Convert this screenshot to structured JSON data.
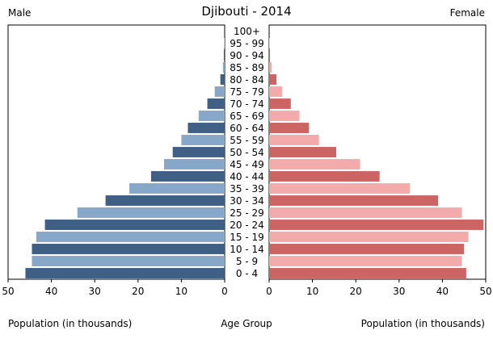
{
  "chart_data": {
    "type": "bar",
    "orientation": "horizontal",
    "title": "Djibouti - 2014",
    "left_panel_label": "Male",
    "right_panel_label": "Female",
    "xlabel_left": "Population (in thousands)",
    "xlabel_center": "Age Group",
    "xlabel_right": "Population (in thousands)",
    "xlim": [
      0,
      50
    ],
    "xticks": [
      0,
      10,
      20,
      30,
      40,
      50
    ],
    "categories": [
      "0 - 4",
      "5 - 9",
      "10 - 14",
      "15 - 19",
      "20 - 24",
      "25 - 29",
      "30 - 34",
      "35 - 39",
      "40 - 44",
      "45 - 49",
      "50 - 54",
      "55 - 59",
      "60 - 64",
      "65 - 69",
      "70 - 74",
      "75 - 79",
      "80 - 84",
      "85 - 89",
      "90 - 94",
      "95 - 99",
      "100+"
    ],
    "series": [
      {
        "name": "Male",
        "values": [
          46,
          44.5,
          44.5,
          43.5,
          41.5,
          34,
          27.5,
          22,
          17,
          14,
          12,
          10,
          8.5,
          6,
          4,
          2.3,
          1,
          0.4,
          0.2,
          0.1,
          0
        ]
      },
      {
        "name": "Female",
        "values": [
          45.5,
          44.5,
          45,
          46,
          49.5,
          44.5,
          39,
          32.5,
          25.5,
          21,
          15.5,
          11.5,
          9.2,
          7,
          5,
          3,
          1.7,
          0.6,
          0.2,
          0.1,
          0
        ]
      }
    ],
    "colors": {
      "male_dark": "#3f5f85",
      "male_light": "#87a7c8",
      "female_dark": "#cd6464",
      "female_light": "#f2aaaa"
    }
  }
}
